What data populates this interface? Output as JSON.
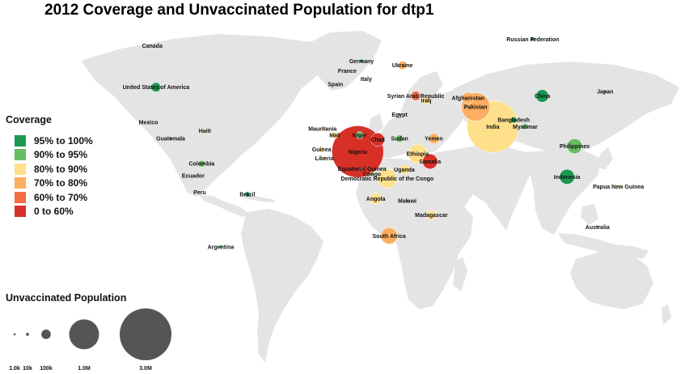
{
  "title": "2012 Coverage and Unvaccinated Population for dtp1",
  "colors": {
    "background": "#ffffff",
    "land": "#e4e4e4",
    "bubble_unvaccinated": "#555555",
    "coverage_95_100": "#1a9850",
    "coverage_90_95": "#66bd63",
    "coverage_80_90": "#fee08b",
    "coverage_70_80": "#fdae61",
    "coverage_60_70": "#f46d43",
    "coverage_0_60": "#d73027"
  },
  "coverage_legend": {
    "title": "Coverage",
    "items": [
      {
        "label": "95% to 100%",
        "color": "#1a9850"
      },
      {
        "label": "90% to 95%",
        "color": "#66bd63"
      },
      {
        "label": "80% to 90%",
        "color": "#fee08b"
      },
      {
        "label": "70% to 80%",
        "color": "#fdae61"
      },
      {
        "label": "60% to 70%",
        "color": "#f46d43"
      },
      {
        "label": "0 to 60%",
        "color": "#d73027"
      }
    ]
  },
  "size_legend": {
    "title": "Unvaccinated Population",
    "items": [
      {
        "label": "1.0k",
        "value": 1000
      },
      {
        "label": "10k",
        "value": 10000
      },
      {
        "label": "100k",
        "value": 100000
      },
      {
        "label": "1.0M",
        "value": 1000000
      },
      {
        "label": "3.0M",
        "value": 3000000
      }
    ]
  },
  "map": {
    "type": "proportional-symbol-map",
    "projection": "equirectangular",
    "countries": [
      {
        "name": "Canada",
        "lon": -100,
        "lat": 58,
        "bubble": false
      },
      {
        "name": "United States of America",
        "lon": -98,
        "lat": 39,
        "unvaccinated": 100000,
        "coverage": "95% to 100%"
      },
      {
        "name": "Mexico",
        "lon": -102,
        "lat": 23,
        "unvaccinated": 4000,
        "coverage": "95% to 100%"
      },
      {
        "name": "Haiti",
        "lon": -72.3,
        "lat": 19,
        "unvaccinated": 15000,
        "coverage": "80% to 90%"
      },
      {
        "name": "Guatemala",
        "lon": -90.3,
        "lat": 15.5,
        "unvaccinated": 12000,
        "coverage": "95% to 100%"
      },
      {
        "name": "Colombia",
        "lon": -74,
        "lat": 4,
        "unvaccinated": 50000,
        "coverage": "90% to 95%"
      },
      {
        "name": "Ecuador",
        "lon": -78.5,
        "lat": -1.5,
        "bubble": false
      },
      {
        "name": "Peru",
        "lon": -75,
        "lat": -9,
        "bubble": false
      },
      {
        "name": "Brazil",
        "lon": -50,
        "lat": -10,
        "unvaccinated": 30000,
        "coverage": "95% to 100%"
      },
      {
        "name": "Argentina",
        "lon": -64,
        "lat": -34,
        "unvaccinated": 12000,
        "coverage": "90% to 95%"
      },
      {
        "name": "Germany",
        "lon": 10,
        "lat": 51,
        "unvaccinated": 15000,
        "coverage": "95% to 100%"
      },
      {
        "name": "France",
        "lon": 2.5,
        "lat": 46.5,
        "bubble": false
      },
      {
        "name": "Spain",
        "lon": -3.7,
        "lat": 40.3,
        "bubble": false
      },
      {
        "name": "Italy",
        "lon": 12.5,
        "lat": 42.8,
        "bubble": false
      },
      {
        "name": "Ukraine",
        "lon": 31.5,
        "lat": 49,
        "unvaccinated": 80000,
        "coverage": "70% to 80%"
      },
      {
        "name": "Russian Federation",
        "lon": 100,
        "lat": 61,
        "unvaccinated": 20000,
        "coverage": "95% to 100%"
      },
      {
        "name": "Syrian Arab Republic",
        "lon": 38.5,
        "lat": 35,
        "unvaccinated": 100000,
        "coverage": "60% to 70%"
      },
      {
        "name": "Iraq",
        "lon": 44,
        "lat": 33,
        "unvaccinated": 70000,
        "coverage": "80% to 90%"
      },
      {
        "name": "Afghanistan",
        "lon": 66,
        "lat": 34,
        "unvaccinated": 150000,
        "coverage": "70% to 80%"
      },
      {
        "name": "Pakistan",
        "lon": 70,
        "lat": 30,
        "unvaccinated": 900000,
        "coverage": "70% to 80%"
      },
      {
        "name": "China",
        "lon": 105,
        "lat": 35,
        "unvaccinated": 180000,
        "coverage": "95% to 100%"
      },
      {
        "name": "Japan",
        "lon": 138,
        "lat": 37,
        "unvaccinated": 3000,
        "coverage": "95% to 100%"
      },
      {
        "name": "India",
        "lon": 79,
        "lat": 21,
        "unvaccinated": 3000000,
        "coverage": "80% to 90%"
      },
      {
        "name": "Bangladesh",
        "lon": 90,
        "lat": 24,
        "unvaccinated": 40000,
        "coverage": "95% to 100%"
      },
      {
        "name": "Myanmar",
        "lon": 96,
        "lat": 21,
        "unvaccinated": 40000,
        "coverage": "90% to 95%"
      },
      {
        "name": "Philippines",
        "lon": 122,
        "lat": 12,
        "unvaccinated": 250000,
        "coverage": "90% to 95%"
      },
      {
        "name": "Indonesia",
        "lon": 118,
        "lat": -2,
        "unvaccinated": 250000,
        "coverage": "95% to 100%"
      },
      {
        "name": "Papua New Guinea",
        "lon": 145,
        "lat": -6.5,
        "unvaccinated": 20000,
        "coverage": "80% to 90%"
      },
      {
        "name": "Australia",
        "lon": 134,
        "lat": -25,
        "unvaccinated": 5000,
        "coverage": "90% to 95%"
      },
      {
        "name": "Niger",
        "lon": 9,
        "lat": 17,
        "unvaccinated": 60000,
        "coverage": "90% to 95%"
      },
      {
        "name": "Mauritania",
        "lon": -10.5,
        "lat": 20,
        "unvaccinated": 15000,
        "coverage": "80% to 90%"
      },
      {
        "name": "Mali",
        "lon": -4,
        "lat": 17,
        "unvaccinated": 50000,
        "coverage": "80% to 90%"
      },
      {
        "name": "Guinea",
        "lon": -11,
        "lat": 10.5,
        "unvaccinated": 40000,
        "coverage": "80% to 90%"
      },
      {
        "name": "Liberia",
        "lon": -9.5,
        "lat": 6.5,
        "unvaccinated": 15000,
        "coverage": "80% to 90%"
      },
      {
        "name": "Nigeria",
        "lon": 8,
        "lat": 9.5,
        "unvaccinated": 3000000,
        "coverage": "0 to 60%"
      },
      {
        "name": "Chad",
        "lon": 18.5,
        "lat": 15,
        "unvaccinated": 200000,
        "coverage": "0 to 60%"
      },
      {
        "name": "Sudan",
        "lon": 30,
        "lat": 15.5,
        "unvaccinated": 60000,
        "coverage": "90% to 95%"
      },
      {
        "name": "Egypt",
        "lon": 30,
        "lat": 26.5,
        "unvaccinated": 8000,
        "coverage": "95% to 100%"
      },
      {
        "name": "Yemen",
        "lon": 48,
        "lat": 15.5,
        "unvaccinated": 120000,
        "coverage": "70% to 80%"
      },
      {
        "name": "Ethiopia",
        "lon": 39.5,
        "lat": 8.5,
        "unvaccinated": 400000,
        "coverage": "80% to 90%"
      },
      {
        "name": "Somalia",
        "lon": 46,
        "lat": 5,
        "unvaccinated": 250000,
        "coverage": "0 to 60%"
      },
      {
        "name": "Uganda",
        "lon": 32.5,
        "lat": 1.3,
        "unvaccinated": 100000,
        "coverage": "80% to 90%"
      },
      {
        "name": "Equatorial Guinea",
        "lon": 10.3,
        "lat": 1.6,
        "unvaccinated": 5000,
        "coverage": "60% to 70%"
      },
      {
        "name": "Congo",
        "lon": 15.5,
        "lat": -0.7,
        "unvaccinated": 15000,
        "coverage": "90% to 95%"
      },
      {
        "name": "Democratic Republic of the Congo",
        "lon": 23.5,
        "lat": -2.8,
        "unvaccinated": 400000,
        "coverage": "80% to 90%"
      },
      {
        "name": "Angola",
        "lon": 17.5,
        "lat": -12,
        "unvaccinated": 150000,
        "coverage": "80% to 90%"
      },
      {
        "name": "Malawi",
        "lon": 34,
        "lat": -13,
        "unvaccinated": 8000,
        "coverage": "95% to 100%"
      },
      {
        "name": "Madagascar",
        "lon": 46.7,
        "lat": -19.5,
        "unvaccinated": 100000,
        "coverage": "80% to 90%"
      },
      {
        "name": "South Africa",
        "lon": 24.5,
        "lat": -29,
        "unvaccinated": 300000,
        "coverage": "70% to 80%"
      }
    ]
  }
}
